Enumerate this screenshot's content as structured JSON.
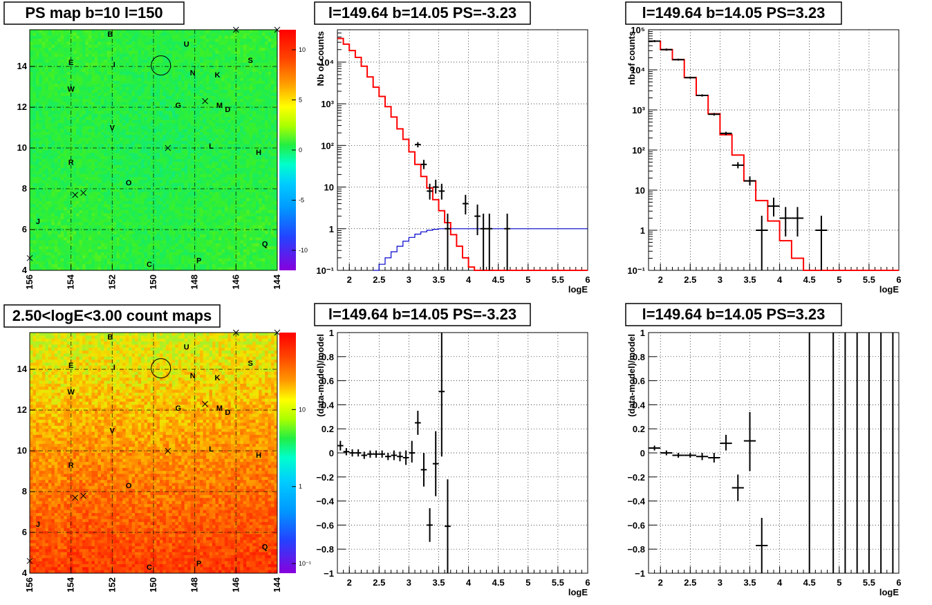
{
  "titles": {
    "ps_map": "PS map b=10 l=150",
    "count_map": "2.50<logE<3.00 count maps",
    "spectrum_neg": "l=149.64 b=14.05 PS=-3.23",
    "spectrum_pos": "l=149.64 b=14.05 PS=3.23",
    "residual_neg": "l=149.64 b=14.05 PS=-3.23",
    "residual_pos": "l=149.64 b=14.05 PS=3.23"
  },
  "colors": {
    "model_line": "#ff0000",
    "secondary_line": "#0000cc",
    "data_points": "#000000",
    "grid": "#000000",
    "map_ps_base": "#22ee44",
    "map_count_base": "#ff9900"
  },
  "chart_data": [
    {
      "id": "ps_map",
      "type": "heatmap",
      "title": "PS map b=10 l=150",
      "xlim": [
        156,
        144
      ],
      "ylim": [
        4,
        15.8
      ],
      "xticks": [
        "156",
        "154",
        "152",
        "150",
        "148",
        "146",
        "144"
      ],
      "yticks": [
        "4",
        "6",
        "8",
        "10",
        "12",
        "14"
      ],
      "colorbar": {
        "scale": "linear",
        "range": [
          -12,
          12
        ],
        "ticks": [
          "10",
          "5",
          "0",
          "-5",
          "-10"
        ]
      },
      "source_labels": [
        {
          "t": "B",
          "l": 152.1,
          "b": 15.6
        },
        {
          "t": "U",
          "l": 148.4,
          "b": 15.1
        },
        {
          "t": "S",
          "l": 145.3,
          "b": 14.3
        },
        {
          "t": "E",
          "l": 154.0,
          "b": 14.2
        },
        {
          "t": "I",
          "l": 151.9,
          "b": 14.1
        },
        {
          "t": "N",
          "l": 148.1,
          "b": 13.7
        },
        {
          "t": "K",
          "l": 146.9,
          "b": 13.6
        },
        {
          "t": "W",
          "l": 154.0,
          "b": 12.9
        },
        {
          "t": "G",
          "l": 148.8,
          "b": 12.1
        },
        {
          "t": "M",
          "l": 146.8,
          "b": 12.1
        },
        {
          "t": "D",
          "l": 146.4,
          "b": 11.9
        },
        {
          "t": "V",
          "l": 152.0,
          "b": 11.0
        },
        {
          "t": "L",
          "l": 147.2,
          "b": 10.1
        },
        {
          "t": "H",
          "l": 144.9,
          "b": 9.8
        },
        {
          "t": "R",
          "l": 154.0,
          "b": 9.3
        },
        {
          "t": "O",
          "l": 151.2,
          "b": 8.3
        },
        {
          "t": "J",
          "l": 155.6,
          "b": 6.4
        },
        {
          "t": "Q",
          "l": 144.6,
          "b": 5.3
        },
        {
          "t": "P",
          "l": 147.8,
          "b": 4.5
        },
        {
          "t": "C",
          "l": 150.2,
          "b": 4.3
        }
      ],
      "source_markers": [
        {
          "l": 146.0,
          "b": 15.8
        },
        {
          "l": 144.0,
          "b": 15.8
        },
        {
          "l": 147.5,
          "b": 12.3
        },
        {
          "l": 149.3,
          "b": 10.0
        },
        {
          "l": 153.8,
          "b": 7.7
        },
        {
          "l": 153.4,
          "b": 7.8
        },
        {
          "l": 156.0,
          "b": 4.6
        }
      ],
      "target_circle": {
        "l": 149.64,
        "b": 14.05
      }
    },
    {
      "id": "count_map",
      "type": "heatmap",
      "title": "2.50<logE<3.00 count maps",
      "xlim": [
        156,
        144
      ],
      "ylim": [
        4,
        15.8
      ],
      "xticks": [
        "156",
        "154",
        "152",
        "150",
        "148",
        "146",
        "144"
      ],
      "yticks": [
        "4",
        "6",
        "8",
        "10",
        "12",
        "14"
      ],
      "colorbar": {
        "scale": "log",
        "ticks": [
          "10",
          "1",
          "10⁻¹"
        ]
      }
    },
    {
      "id": "spectrum_neg",
      "type": "line",
      "title": "l=149.64 b=14.05 PS=-3.23",
      "xlabel": "logE",
      "ylabel": "Nb of counts",
      "xlim": [
        1.8,
        6.0
      ],
      "ylim": [
        0.1,
        60000
      ],
      "ylog": true,
      "grid": true,
      "xticks": [
        "2",
        "2.5",
        "3",
        "3.5",
        "4",
        "4.5",
        "5",
        "5.5",
        "6"
      ],
      "yticks": [
        {
          "v": 0.1,
          "t": "10⁻¹"
        },
        {
          "v": 1,
          "t": "1"
        },
        {
          "v": 10,
          "t": "10"
        },
        {
          "v": 100,
          "t": "10²"
        },
        {
          "v": 1000,
          "t": "10³"
        },
        {
          "v": 10000,
          "t": "10⁴"
        }
      ],
      "series": [
        {
          "kind": "step",
          "color": "#ff0000",
          "edges": [
            1.8,
            1.9,
            2.0,
            2.1,
            2.2,
            2.3,
            2.4,
            2.5,
            2.6,
            2.7,
            2.8,
            2.9,
            3.0,
            3.1,
            3.2,
            3.3,
            3.4,
            3.5,
            3.6,
            3.7,
            3.8,
            3.9,
            4.0,
            4.1,
            4.2,
            4.3,
            4.4,
            4.5,
            4.6,
            4.7,
            4.8,
            4.9,
            5.0,
            5.1,
            5.2,
            5.3,
            5.4,
            5.5,
            5.6,
            5.7,
            5.8,
            5.9,
            6.0
          ],
          "values": [
            37000,
            27000,
            19000,
            13000,
            8000,
            4400,
            2500,
            1500,
            850,
            480,
            250,
            140,
            70,
            35,
            18,
            9.5,
            5.0,
            2.7,
            1.4,
            0.72,
            0.38,
            0.2,
            0.12,
            0.1,
            0.1,
            0.1,
            0.1,
            0.1,
            0.1,
            0.1,
            0.1,
            0.1,
            0.1,
            0.1,
            0.1,
            0.1,
            0.1,
            0.1,
            0.1,
            0.1,
            0.1,
            0.1
          ]
        },
        {
          "kind": "step",
          "color": "#0000cc",
          "edges": [
            2.4,
            2.5,
            2.6,
            2.7,
            2.8,
            2.9,
            3.0,
            3.1,
            3.2,
            3.3,
            3.4,
            3.5,
            3.6,
            3.7,
            3.8,
            3.9,
            4.0,
            4.1,
            4.2,
            4.3,
            4.4,
            4.5,
            4.6,
            4.7,
            4.8,
            4.9,
            5.0,
            5.1,
            5.2,
            5.3,
            5.4,
            5.5,
            5.6,
            5.7,
            5.8,
            5.9,
            6.0
          ],
          "values": [
            0.1,
            0.14,
            0.2,
            0.28,
            0.38,
            0.5,
            0.62,
            0.74,
            0.84,
            0.92,
            0.97,
            1.0,
            1.0,
            1.0,
            1.0,
            1.0,
            1.0,
            1.0,
            1.0,
            1.0,
            1.0,
            1.0,
            1.0,
            1.0,
            1.0,
            1.0,
            1.0,
            1.0,
            1.0,
            1.0,
            1.0,
            1.0,
            1.0,
            1.0,
            1.0,
            1.0
          ]
        }
      ],
      "points": [
        {
          "x": 3.15,
          "y": 105,
          "hw": 0.05,
          "lo": 90,
          "hi": 120
        },
        {
          "x": 3.25,
          "y": 35,
          "hw": 0.05,
          "lo": 27,
          "hi": 45
        },
        {
          "x": 3.35,
          "y": 8,
          "hw": 0.05,
          "lo": 5,
          "hi": 12
        },
        {
          "x": 3.45,
          "y": 10,
          "hw": 0.05,
          "lo": 7,
          "hi": 15
        },
        {
          "x": 3.55,
          "y": 8,
          "hw": 0.05,
          "lo": 5,
          "hi": 12
        },
        {
          "x": 3.65,
          "y": 1,
          "hw": 0.05,
          "lo": 0.1,
          "hi": 2.3
        },
        {
          "x": 3.95,
          "y": 4,
          "hw": 0.05,
          "lo": 2.2,
          "hi": 6.5
        },
        {
          "x": 4.15,
          "y": 2,
          "hw": 0.05,
          "lo": 0.7,
          "hi": 3.8
        },
        {
          "x": 4.25,
          "y": 1,
          "hw": 0.05,
          "lo": 0.1,
          "hi": 2.3
        },
        {
          "x": 4.35,
          "y": 1,
          "hw": 0.05,
          "lo": 0.1,
          "hi": 2.3
        },
        {
          "x": 4.65,
          "y": 1,
          "hw": 0.05,
          "lo": 0.1,
          "hi": 2.3
        }
      ]
    },
    {
      "id": "spectrum_pos",
      "type": "line",
      "title": "l=149.64 b=14.05 PS=3.23",
      "xlabel": "logE",
      "ylabel": "nb of counts",
      "xlim": [
        1.8,
        6.0
      ],
      "ylim": [
        0.1,
        100000
      ],
      "ylog": true,
      "grid": true,
      "xticks": [
        "2",
        "2.5",
        "3",
        "3.5",
        "4",
        "4.5",
        "5",
        "5.5",
        "6"
      ],
      "yticks": [
        {
          "v": 0.1,
          "t": "10⁻¹"
        },
        {
          "v": 1,
          "t": "1"
        },
        {
          "v": 10,
          "t": "10"
        },
        {
          "v": 100,
          "t": "10²"
        },
        {
          "v": 1000,
          "t": "10³"
        },
        {
          "v": 10000,
          "t": "10⁴"
        },
        {
          "v": 100000,
          "t": "10⁵"
        }
      ],
      "series": [
        {
          "kind": "step",
          "color": "#ff0000",
          "edges": [
            1.8,
            2.0,
            2.2,
            2.4,
            2.6,
            2.8,
            3.0,
            3.2,
            3.4,
            3.6,
            3.8,
            4.0,
            4.2,
            4.4,
            4.6,
            4.8,
            5.0,
            5.2,
            5.4,
            5.6,
            5.8,
            6.0
          ],
          "values": [
            52000,
            32000,
            18000,
            6400,
            2300,
            800,
            240,
            75,
            17,
            5.5,
            1.7,
            0.55,
            0.2,
            0.1,
            0.1,
            0.1,
            0.1,
            0.1,
            0.1,
            0.1,
            0.1
          ]
        }
      ],
      "points": [
        {
          "x": 1.9,
          "y": 52000,
          "hw": 0.1,
          "lo": 49000,
          "hi": 55000
        },
        {
          "x": 2.1,
          "y": 32000,
          "hw": 0.1,
          "lo": 30000,
          "hi": 34000
        },
        {
          "x": 2.3,
          "y": 18000,
          "hw": 0.1,
          "lo": 17000,
          "hi": 19000
        },
        {
          "x": 2.5,
          "y": 6400,
          "hw": 0.1,
          "lo": 6000,
          "hi": 6800
        },
        {
          "x": 2.7,
          "y": 2300,
          "hw": 0.1,
          "lo": 2150,
          "hi": 2450
        },
        {
          "x": 2.9,
          "y": 780,
          "hw": 0.1,
          "lo": 720,
          "hi": 840
        },
        {
          "x": 3.1,
          "y": 260,
          "hw": 0.1,
          "lo": 235,
          "hi": 285
        },
        {
          "x": 3.3,
          "y": 42,
          "hw": 0.1,
          "lo": 35,
          "hi": 50
        },
        {
          "x": 3.5,
          "y": 17,
          "hw": 0.1,
          "lo": 13,
          "hi": 22
        },
        {
          "x": 3.7,
          "y": 1,
          "hw": 0.1,
          "lo": 0.1,
          "hi": 2.3
        },
        {
          "x": 3.9,
          "y": 4,
          "hw": 0.1,
          "lo": 2.2,
          "hi": 6.5
        },
        {
          "x": 4.1,
          "y": 2,
          "hw": 0.1,
          "lo": 0.7,
          "hi": 3.8
        },
        {
          "x": 4.3,
          "y": 2,
          "hw": 0.1,
          "lo": 0.7,
          "hi": 3.8
        },
        {
          "x": 4.7,
          "y": 1,
          "hw": 0.1,
          "lo": 0.1,
          "hi": 2.3
        }
      ]
    },
    {
      "id": "residual_neg",
      "type": "scatter",
      "title": "l=149.64 b=14.05 PS=-3.23",
      "xlabel": "logE",
      "ylabel": "(data-model)/model",
      "xlim": [
        1.8,
        6.0
      ],
      "ylim": [
        -1,
        1
      ],
      "ylog": false,
      "grid": true,
      "xticks": [
        "2",
        "2.5",
        "3",
        "3.5",
        "4",
        "4.5",
        "5",
        "5.5",
        "6"
      ],
      "yticks": [
        {
          "v": -1,
          "t": "−1"
        },
        {
          "v": -0.8,
          "t": "−0.8"
        },
        {
          "v": -0.6,
          "t": "−0.6"
        },
        {
          "v": -0.4,
          "t": "−0.4"
        },
        {
          "v": -0.2,
          "t": "−0.2"
        },
        {
          "v": 0,
          "t": "0"
        },
        {
          "v": 0.2,
          "t": "0.2"
        },
        {
          "v": 0.4,
          "t": "0.4"
        },
        {
          "v": 0.6,
          "t": "0.6"
        },
        {
          "v": 0.8,
          "t": "0.8"
        },
        {
          "v": 1,
          "t": "1"
        }
      ],
      "points": [
        {
          "x": 1.85,
          "y": 0.06,
          "hw": 0.05,
          "lo": 0.02,
          "hi": 0.1
        },
        {
          "x": 1.95,
          "y": 0.01,
          "hw": 0.05,
          "lo": -0.02,
          "hi": 0.04
        },
        {
          "x": 2.05,
          "y": 0.0,
          "hw": 0.05,
          "lo": -0.03,
          "hi": 0.03
        },
        {
          "x": 2.15,
          "y": 0.0,
          "hw": 0.05,
          "lo": -0.03,
          "hi": 0.03
        },
        {
          "x": 2.25,
          "y": -0.02,
          "hw": 0.05,
          "lo": -0.05,
          "hi": 0.01
        },
        {
          "x": 2.35,
          "y": -0.01,
          "hw": 0.05,
          "lo": -0.04,
          "hi": 0.02
        },
        {
          "x": 2.45,
          "y": -0.01,
          "hw": 0.05,
          "lo": -0.04,
          "hi": 0.02
        },
        {
          "x": 2.55,
          "y": -0.01,
          "hw": 0.05,
          "lo": -0.04,
          "hi": 0.02
        },
        {
          "x": 2.65,
          "y": -0.03,
          "hw": 0.05,
          "lo": -0.06,
          "hi": 0.0
        },
        {
          "x": 2.75,
          "y": -0.02,
          "hw": 0.05,
          "lo": -0.06,
          "hi": 0.02
        },
        {
          "x": 2.85,
          "y": -0.03,
          "hw": 0.05,
          "lo": -0.07,
          "hi": 0.01
        },
        {
          "x": 2.95,
          "y": -0.04,
          "hw": 0.05,
          "lo": -0.1,
          "hi": 0.02
        },
        {
          "x": 3.05,
          "y": 0.0,
          "hw": 0.05,
          "lo": -0.08,
          "hi": 0.1
        },
        {
          "x": 3.15,
          "y": 0.25,
          "hw": 0.05,
          "lo": 0.15,
          "hi": 0.35
        },
        {
          "x": 3.25,
          "y": -0.14,
          "hw": 0.05,
          "lo": -0.28,
          "hi": 0.0
        },
        {
          "x": 3.35,
          "y": -0.6,
          "hw": 0.05,
          "lo": -0.74,
          "hi": -0.46
        },
        {
          "x": 3.45,
          "y": -0.09,
          "hw": 0.05,
          "lo": -0.36,
          "hi": 0.18
        },
        {
          "x": 3.55,
          "y": 0.51,
          "hw": 0.05,
          "lo": -0.03,
          "hi": 1.0
        },
        {
          "x": 3.65,
          "y": -0.61,
          "hw": 0.05,
          "lo": -1.0,
          "hi": -0.22
        }
      ]
    },
    {
      "id": "residual_pos",
      "type": "scatter",
      "title": "l=149.64 b=14.05 PS=3.23",
      "xlabel": "logE",
      "ylabel": "(data-model)/model",
      "xlim": [
        1.8,
        6.0
      ],
      "ylim": [
        -1,
        1
      ],
      "ylog": false,
      "grid": true,
      "xticks": [
        "2",
        "2.5",
        "3",
        "3.5",
        "4",
        "4.5",
        "5",
        "5.5",
        "6"
      ],
      "yticks": [
        {
          "v": -1,
          "t": "−1"
        },
        {
          "v": -0.8,
          "t": "−0.8"
        },
        {
          "v": -0.6,
          "t": "−0.6"
        },
        {
          "v": -0.4,
          "t": "−0.4"
        },
        {
          "v": -0.2,
          "t": "−0.2"
        },
        {
          "v": 0,
          "t": "0"
        },
        {
          "v": 0.2,
          "t": "0.2"
        },
        {
          "v": 0.4,
          "t": "0.4"
        },
        {
          "v": 0.6,
          "t": "0.6"
        },
        {
          "v": 0.8,
          "t": "0.8"
        },
        {
          "v": 1,
          "t": "1"
        }
      ],
      "points": [
        {
          "x": 1.9,
          "y": 0.04,
          "hw": 0.1,
          "lo": 0.02,
          "hi": 0.06
        },
        {
          "x": 2.1,
          "y": 0.0,
          "hw": 0.1,
          "lo": -0.02,
          "hi": 0.02
        },
        {
          "x": 2.3,
          "y": -0.02,
          "hw": 0.1,
          "lo": -0.04,
          "hi": 0.0
        },
        {
          "x": 2.5,
          "y": -0.02,
          "hw": 0.1,
          "lo": -0.04,
          "hi": 0.0
        },
        {
          "x": 2.7,
          "y": -0.03,
          "hw": 0.1,
          "lo": -0.06,
          "hi": 0.0
        },
        {
          "x": 2.9,
          "y": -0.04,
          "hw": 0.1,
          "lo": -0.08,
          "hi": 0.0
        },
        {
          "x": 3.1,
          "y": 0.08,
          "hw": 0.1,
          "lo": 0.02,
          "hi": 0.15
        },
        {
          "x": 3.3,
          "y": -0.29,
          "hw": 0.1,
          "lo": -0.4,
          "hi": -0.18
        },
        {
          "x": 3.5,
          "y": 0.1,
          "hw": 0.1,
          "lo": -0.15,
          "hi": 0.34
        },
        {
          "x": 3.7,
          "y": -0.77,
          "hw": 0.1,
          "lo": -1.0,
          "hi": -0.54
        },
        {
          "x": 4.5,
          "y": 1.0,
          "hw": 0.0,
          "lo": -1.0,
          "hi": 1.0
        },
        {
          "x": 4.9,
          "y": 1.0,
          "hw": 0.0,
          "lo": -1.0,
          "hi": 1.0
        },
        {
          "x": 5.1,
          "y": 1.0,
          "hw": 0.0,
          "lo": -1.0,
          "hi": 1.0
        },
        {
          "x": 5.3,
          "y": 1.0,
          "hw": 0.0,
          "lo": -1.0,
          "hi": 1.0
        },
        {
          "x": 5.5,
          "y": 1.0,
          "hw": 0.0,
          "lo": -1.0,
          "hi": 1.0
        },
        {
          "x": 5.7,
          "y": 1.0,
          "hw": 0.0,
          "lo": -1.0,
          "hi": 1.0
        },
        {
          "x": 5.9,
          "y": 1.0,
          "hw": 0.0,
          "lo": -1.0,
          "hi": 1.0
        }
      ]
    }
  ]
}
